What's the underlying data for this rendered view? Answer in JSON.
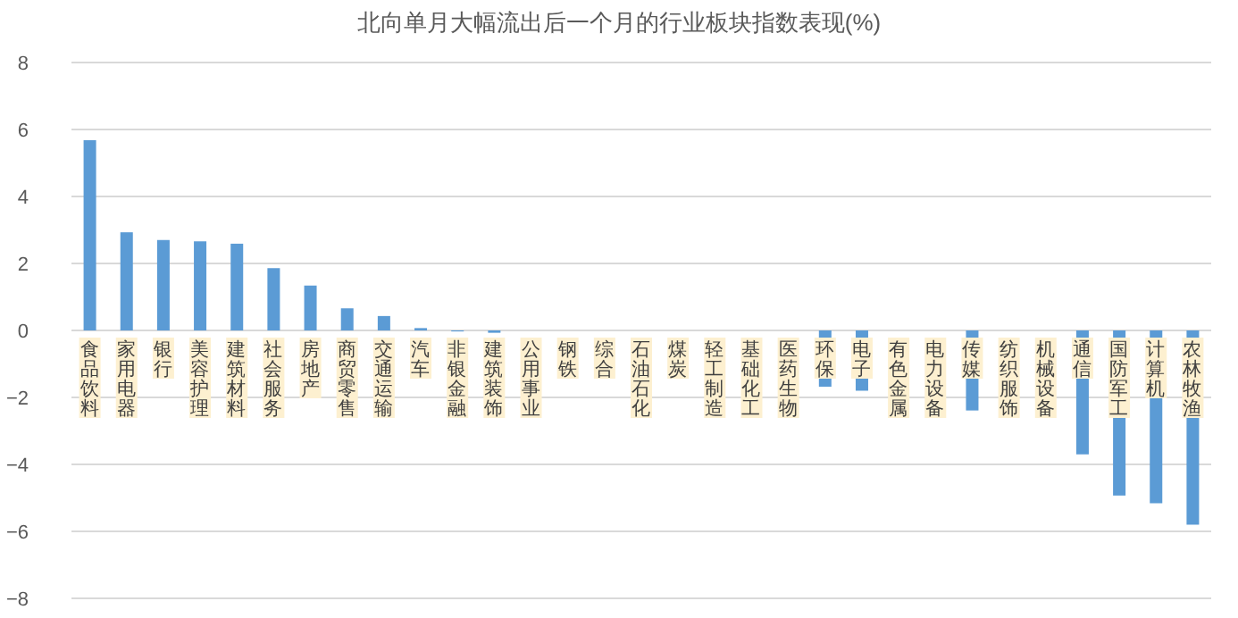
{
  "chart_data": {
    "type": "bar",
    "title": "北向单月大幅流出后一个月的行业板块指数表现(%)",
    "categories": [
      "食品饮料",
      "家用电器",
      "银行",
      "美容护理",
      "建筑材料",
      "社会服务",
      "房地产",
      "商贸零售",
      "交通运输",
      "汽车",
      "非银金融",
      "建筑装饰",
      "公用事业",
      "钢铁",
      "综合",
      "石油石化",
      "煤炭",
      "轻工制造",
      "基础化工",
      "医药生物",
      "环保",
      "电子",
      "有色金属",
      "电力设备",
      "传媒",
      "纺织服饰",
      "机械设备",
      "通信",
      "国防军工",
      "计算机",
      "农林牧渔"
    ],
    "values": [
      5.68,
      2.93,
      2.7,
      2.66,
      2.59,
      1.86,
      1.34,
      0.66,
      0.43,
      0.07,
      -0.03,
      -0.07,
      null,
      null,
      null,
      null,
      null,
      null,
      null,
      null,
      -1.68,
      -1.8,
      null,
      null,
      -2.39,
      null,
      null,
      -3.7,
      -4.93,
      -5.16,
      -5.8
    ],
    "color": "#5b9bd5",
    "ylim": [
      -8,
      8
    ],
    "yticks": [
      -8,
      -6,
      -4,
      -2,
      0,
      2,
      4,
      6,
      8
    ],
    "grid": "y"
  }
}
